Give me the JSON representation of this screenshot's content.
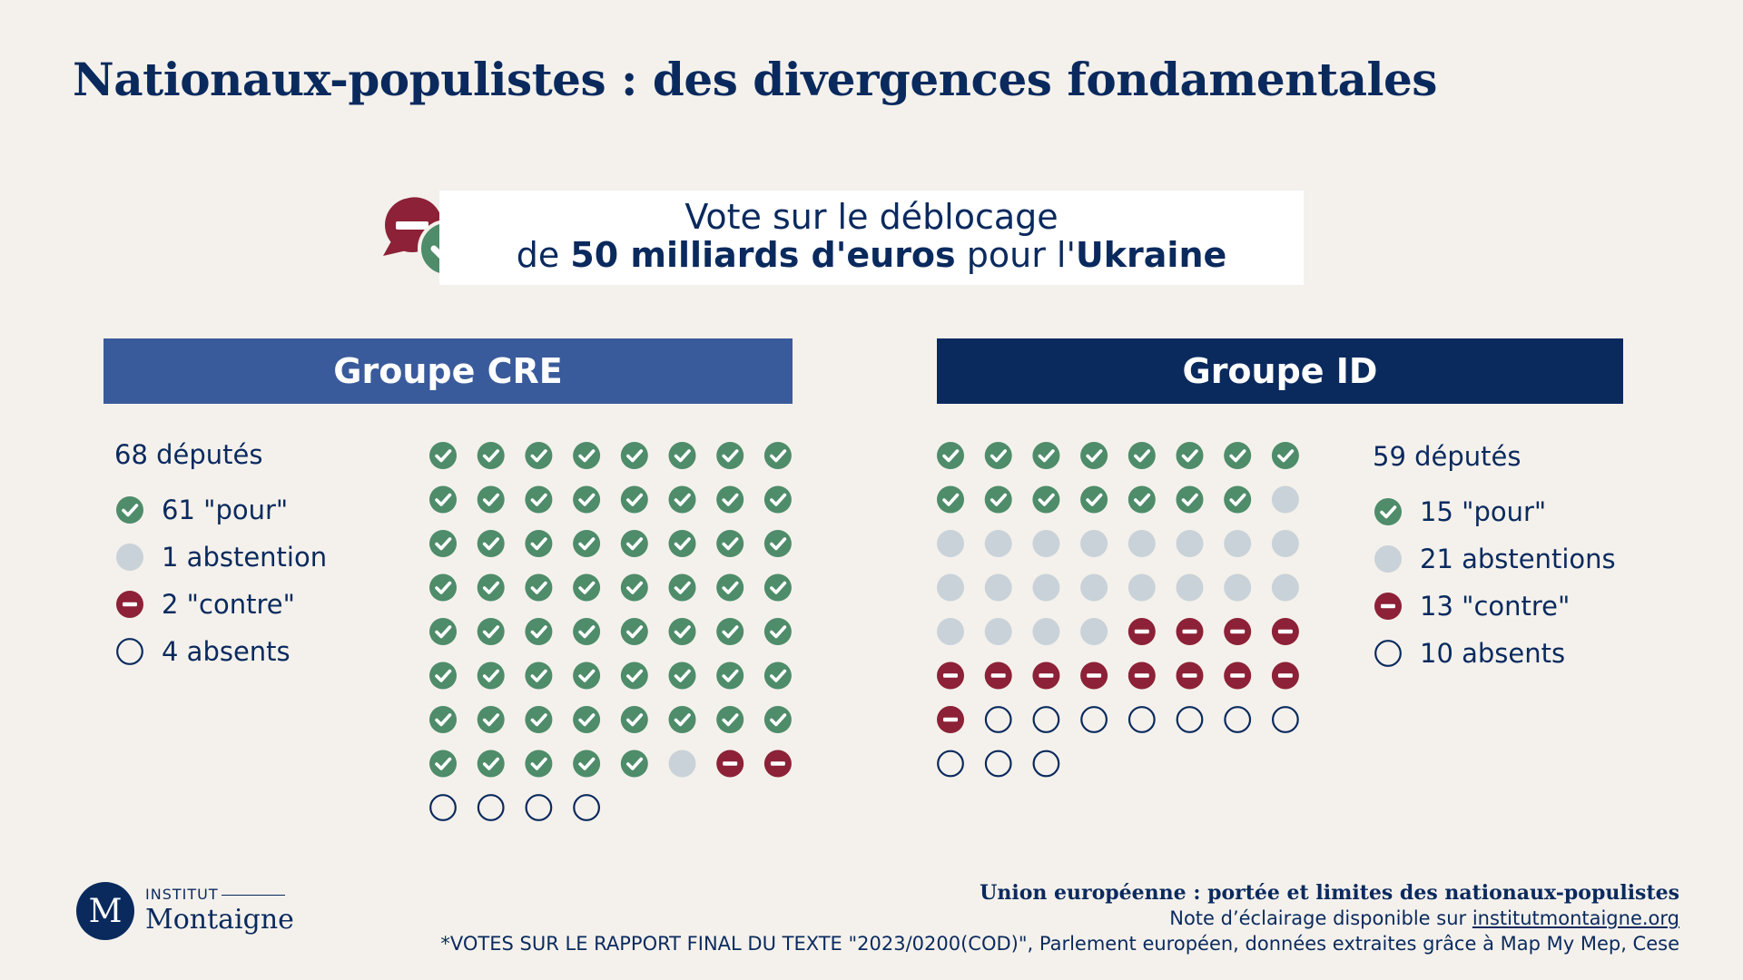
{
  "title": "Nationaux-populistes : des divergences fondamentales",
  "vote_box": {
    "line1": "Vote sur le déblocage",
    "line2_pre": "de ",
    "line2_bold1": "50 milliards d'euros",
    "line2_mid": " pour l'",
    "line2_bold2": "Ukraine"
  },
  "colors": {
    "pour": "#4e8c6a",
    "abstention": "#c9d2d8",
    "contre": "#8c2137",
    "absent": "#0a2a5e",
    "cre_header": "#3a5b9b",
    "id_header": "#0a2a5e"
  },
  "chart_data": [
    {
      "type": "waffle",
      "title": "Groupe CRE",
      "total_label": "68 députés",
      "columns": 8,
      "series": [
        {
          "key": "pour",
          "label": "61 \"pour\"",
          "value": 61
        },
        {
          "key": "abstention",
          "label": "1 abstention",
          "value": 1
        },
        {
          "key": "contre",
          "label": "2 \"contre\"",
          "value": 2
        },
        {
          "key": "absent",
          "label": "4 absents",
          "value": 4
        }
      ]
    },
    {
      "type": "waffle",
      "title": "Groupe ID",
      "total_label": "59 députés",
      "columns": 8,
      "series": [
        {
          "key": "pour",
          "label": "15 \"pour\"",
          "value": 15
        },
        {
          "key": "abstention",
          "label": "21 abstentions",
          "value": 21
        },
        {
          "key": "contre",
          "label": "13 \"contre\"",
          "value": 13
        },
        {
          "key": "absent",
          "label": "10 absents",
          "value": 10
        }
      ]
    }
  ],
  "footer": {
    "line1": "Union européenne : portée et limites des nationaux-populistes",
    "line2_pre": "Note d’éclairage disponible sur ",
    "line2_link": "institutmontaigne.org",
    "line3": "*VOTES SUR LE RAPPORT FINAL DU TEXTE \"2023/0200(COD)\", Parlement européen, données extraites grâce à Map My Mep, Cese"
  },
  "logo": {
    "letter": "M",
    "small": "INSTITUT",
    "big": "Montaigne"
  }
}
